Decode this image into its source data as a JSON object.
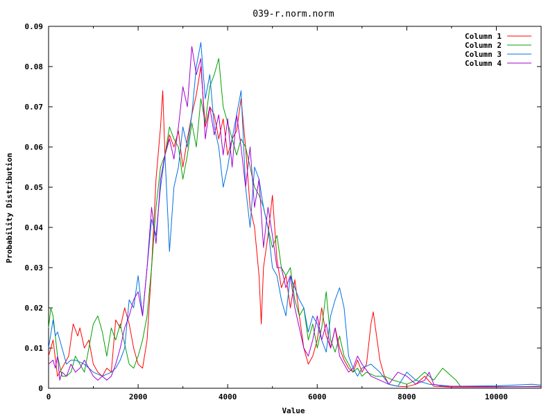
{
  "chart_data": {
    "type": "line",
    "title": "039-r.norm.norm",
    "xlabel": "Value",
    "ylabel": "Probability Distribution",
    "xlim": [
      0,
      11000
    ],
    "ylim": [
      0,
      0.09
    ],
    "x_ticks": [
      "0",
      "2000",
      "4000",
      "6000",
      "8000",
      "10000"
    ],
    "y_ticks": [
      "0",
      "0.01",
      "0.02",
      "0.03",
      "0.04",
      "0.05",
      "0.06",
      "0.07",
      "0.08",
      "0.09"
    ],
    "grid": false,
    "legend_position": "top-right",
    "series": [
      {
        "name": "Column 1",
        "color": "#ff0000",
        "x": [
          0,
          100,
          200,
          300,
          450,
          550,
          650,
          700,
          800,
          900,
          1000,
          1100,
          1200,
          1300,
          1400,
          1500,
          1600,
          1700,
          1800,
          1900,
          2000,
          2100,
          2200,
          2300,
          2400,
          2500,
          2550,
          2600,
          2700,
          2800,
          2900,
          3000,
          3100,
          3200,
          3300,
          3400,
          3500,
          3600,
          3700,
          3800,
          3900,
          4000,
          4100,
          4200,
          4300,
          4400,
          4500,
          4600,
          4700,
          4750,
          4800,
          4900,
          5000,
          5100,
          5200,
          5300,
          5400,
          5500,
          5600,
          5700,
          5800,
          5900,
          6000,
          6100,
          6200,
          6300,
          6400,
          6500,
          6600,
          6700,
          6800,
          6900,
          7000,
          7100,
          7200,
          7250,
          7300,
          7400,
          7500,
          7600,
          7700,
          7800,
          8000,
          8200,
          8400,
          8600,
          9000,
          10000,
          11000
        ],
        "values": [
          0.008,
          0.012,
          0.003,
          0.005,
          0.008,
          0.016,
          0.013,
          0.015,
          0.01,
          0.012,
          0.006,
          0.004,
          0.003,
          0.005,
          0.004,
          0.017,
          0.015,
          0.02,
          0.016,
          0.01,
          0.006,
          0.005,
          0.012,
          0.03,
          0.052,
          0.065,
          0.074,
          0.058,
          0.063,
          0.06,
          0.064,
          0.055,
          0.062,
          0.068,
          0.073,
          0.08,
          0.065,
          0.07,
          0.068,
          0.062,
          0.067,
          0.058,
          0.062,
          0.064,
          0.072,
          0.06,
          0.045,
          0.04,
          0.028,
          0.016,
          0.03,
          0.038,
          0.048,
          0.032,
          0.025,
          0.028,
          0.02,
          0.027,
          0.018,
          0.01,
          0.006,
          0.008,
          0.012,
          0.02,
          0.013,
          0.01,
          0.015,
          0.01,
          0.007,
          0.005,
          0.004,
          0.007,
          0.004,
          0.006,
          0.016,
          0.019,
          0.015,
          0.007,
          0.003,
          0.001,
          0.0007,
          0.0005,
          0.0004,
          0.001,
          0.003,
          0.0005,
          0.0003,
          0.0003,
          0.0005
        ]
      },
      {
        "name": "Column 2",
        "color": "#00a000",
        "x": [
          0,
          50,
          100,
          200,
          300,
          400,
          500,
          600,
          700,
          800,
          900,
          1000,
          1100,
          1200,
          1300,
          1400,
          1500,
          1600,
          1700,
          1800,
          1900,
          2000,
          2100,
          2200,
          2300,
          2400,
          2500,
          2600,
          2700,
          2800,
          2900,
          3000,
          3100,
          3200,
          3300,
          3400,
          3500,
          3600,
          3700,
          3800,
          3900,
          4000,
          4100,
          4200,
          4300,
          4400,
          4500,
          4600,
          4700,
          4800,
          4900,
          5000,
          5100,
          5200,
          5300,
          5400,
          5500,
          5600,
          5700,
          5800,
          5900,
          6000,
          6100,
          6200,
          6300,
          6400,
          6500,
          6600,
          6700,
          6800,
          6900,
          7000,
          7100,
          7300,
          7500,
          7700,
          8000,
          8200,
          8400,
          8600,
          8800,
          9000,
          9100,
          9200,
          10000,
          11000
        ],
        "values": [
          0.015,
          0.02,
          0.018,
          0.008,
          0.003,
          0.003,
          0.004,
          0.008,
          0.006,
          0.004,
          0.01,
          0.016,
          0.018,
          0.014,
          0.008,
          0.015,
          0.012,
          0.016,
          0.011,
          0.006,
          0.005,
          0.008,
          0.012,
          0.018,
          0.03,
          0.045,
          0.055,
          0.058,
          0.065,
          0.062,
          0.06,
          0.052,
          0.058,
          0.066,
          0.06,
          0.072,
          0.066,
          0.075,
          0.078,
          0.082,
          0.07,
          0.066,
          0.062,
          0.058,
          0.062,
          0.06,
          0.055,
          0.05,
          0.048,
          0.045,
          0.04,
          0.035,
          0.038,
          0.03,
          0.028,
          0.03,
          0.022,
          0.018,
          0.02,
          0.012,
          0.016,
          0.01,
          0.015,
          0.024,
          0.012,
          0.009,
          0.013,
          0.008,
          0.006,
          0.004,
          0.005,
          0.003,
          0.004,
          0.003,
          0.003,
          0.002,
          0.001,
          0.002,
          0.004,
          0.002,
          0.005,
          0.003,
          0.002,
          0.0005,
          0.0004,
          0.0004
        ]
      },
      {
        "name": "Column 3",
        "color": "#0070e0",
        "x": [
          0,
          100,
          150,
          200,
          300,
          400,
          500,
          600,
          800,
          1000,
          1200,
          1400,
          1500,
          1600,
          1700,
          1800,
          1900,
          2000,
          2100,
          2200,
          2300,
          2400,
          2500,
          2600,
          2700,
          2800,
          2900,
          3000,
          3100,
          3200,
          3300,
          3400,
          3500,
          3600,
          3700,
          3800,
          3900,
          4000,
          4100,
          4200,
          4300,
          4400,
          4500,
          4600,
          4700,
          4800,
          4900,
          5000,
          5100,
          5200,
          5300,
          5400,
          5500,
          5600,
          5700,
          5800,
          5900,
          6000,
          6100,
          6200,
          6300,
          6400,
          6500,
          6600,
          6700,
          6800,
          6900,
          7000,
          7200,
          7400,
          7600,
          7800,
          8000,
          8200,
          8500,
          9000,
          10000,
          10400,
          10800,
          11000
        ],
        "values": [
          0.01,
          0.017,
          0.013,
          0.014,
          0.01,
          0.006,
          0.007,
          0.007,
          0.006,
          0.004,
          0.003,
          0.004,
          0.005,
          0.007,
          0.01,
          0.022,
          0.02,
          0.028,
          0.018,
          0.03,
          0.042,
          0.038,
          0.05,
          0.058,
          0.034,
          0.05,
          0.055,
          0.065,
          0.06,
          0.068,
          0.08,
          0.086,
          0.072,
          0.078,
          0.065,
          0.06,
          0.05,
          0.055,
          0.062,
          0.068,
          0.074,
          0.05,
          0.04,
          0.055,
          0.052,
          0.045,
          0.04,
          0.03,
          0.028,
          0.022,
          0.018,
          0.028,
          0.025,
          0.022,
          0.02,
          0.014,
          0.018,
          0.016,
          0.012,
          0.009,
          0.018,
          0.022,
          0.025,
          0.02,
          0.008,
          0.005,
          0.003,
          0.005,
          0.006,
          0.004,
          0.001,
          0.0005,
          0.004,
          0.002,
          0.001,
          0.0005,
          0.0006,
          0.0008,
          0.001,
          0.0008
        ]
      },
      {
        "name": "Column 4",
        "color": "#a000d0",
        "x": [
          0,
          100,
          150,
          200,
          250,
          300,
          400,
          500,
          600,
          700,
          800,
          900,
          1000,
          1100,
          1200,
          1300,
          1400,
          1500,
          1600,
          1700,
          1800,
          1900,
          2000,
          2100,
          2200,
          2300,
          2400,
          2500,
          2600,
          2700,
          2800,
          2900,
          3000,
          3100,
          3200,
          3300,
          3400,
          3500,
          3600,
          3700,
          3800,
          3900,
          4000,
          4100,
          4200,
          4300,
          4400,
          4500,
          4600,
          4700,
          4800,
          4900,
          5000,
          5100,
          5200,
          5300,
          5400,
          5500,
          5600,
          5700,
          5800,
          5900,
          6000,
          6100,
          6200,
          6300,
          6400,
          6500,
          6600,
          6700,
          6800,
          6900,
          7000,
          7200,
          7400,
          7600,
          7800,
          8000,
          8200,
          8400,
          8500,
          8600,
          8800,
          9000,
          10000,
          11000
        ],
        "values": [
          0.006,
          0.007,
          0.005,
          0.008,
          0.002,
          0.004,
          0.003,
          0.006,
          0.004,
          0.005,
          0.007,
          0.005,
          0.003,
          0.002,
          0.003,
          0.002,
          0.003,
          0.006,
          0.01,
          0.015,
          0.018,
          0.022,
          0.024,
          0.018,
          0.03,
          0.045,
          0.036,
          0.052,
          0.058,
          0.062,
          0.057,
          0.065,
          0.075,
          0.07,
          0.085,
          0.078,
          0.082,
          0.062,
          0.07,
          0.063,
          0.068,
          0.058,
          0.067,
          0.055,
          0.068,
          0.06,
          0.05,
          0.06,
          0.045,
          0.052,
          0.035,
          0.045,
          0.038,
          0.03,
          0.03,
          0.025,
          0.028,
          0.02,
          0.015,
          0.01,
          0.008,
          0.012,
          0.018,
          0.012,
          0.016,
          0.01,
          0.015,
          0.008,
          0.006,
          0.004,
          0.005,
          0.008,
          0.006,
          0.003,
          0.002,
          0.001,
          0.004,
          0.003,
          0.001,
          0.002,
          0.004,
          0.001,
          0.0005,
          0.0005,
          0.0004,
          0.0004
        ]
      }
    ]
  }
}
